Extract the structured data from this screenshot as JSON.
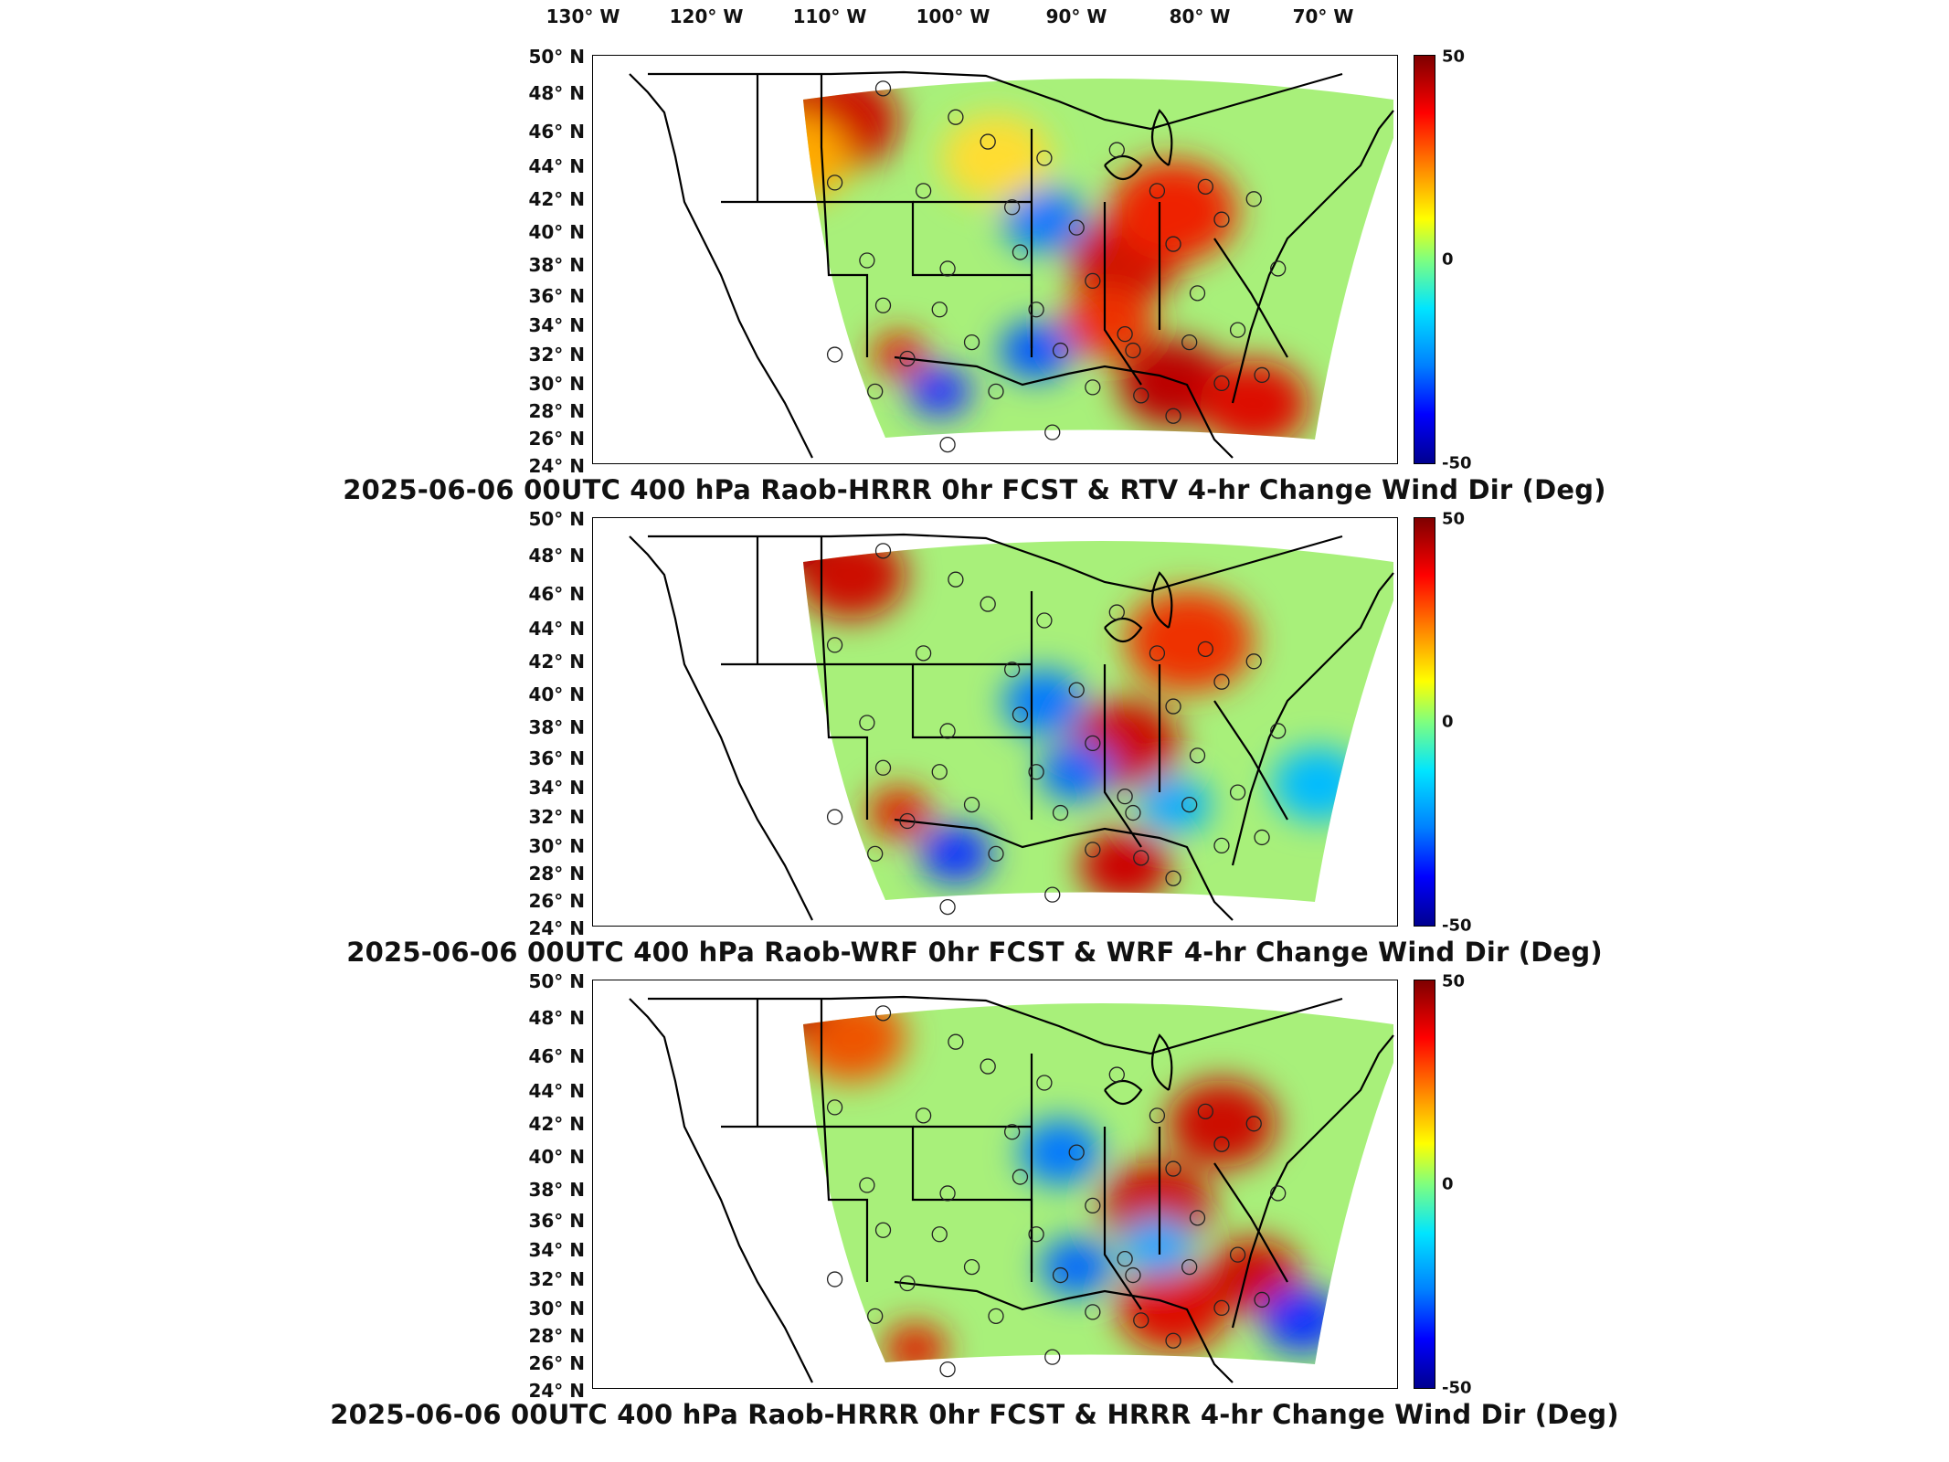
{
  "longitude_labels": [
    "130° W",
    "120° W",
    "110° W",
    "100° W",
    "90° W",
    "80° W",
    "70° W"
  ],
  "latitude_labels": [
    "50° N",
    "48° N",
    "46° N",
    "44° N",
    "42° N",
    "40° N",
    "38° N",
    "36° N",
    "34° N",
    "32° N",
    "30° N",
    "28° N",
    "26° N",
    "24° N"
  ],
  "colorbar": {
    "max": "50",
    "mid": "0",
    "min": "-50",
    "colors": [
      "#7f0000",
      "#ff0000",
      "#ff8c00",
      "#ffff00",
      "#7fff7f",
      "#00e5ff",
      "#0080ff",
      "#0000ff",
      "#00008f"
    ]
  },
  "panels": [
    {
      "title": "2025-06-06 00UTC 400 hPa Raob-HRRR 0hr FCST & RTV 4-hr Change Wind Dir (Deg)"
    },
    {
      "title": "2025-06-06 00UTC 400 hPa Raob-WRF 0hr FCST & WRF 4-hr Change Wind Dir (Deg)"
    },
    {
      "title": "2025-06-06 00UTC 400 hPa Raob-HRRR 0hr FCST & HRRR 4-hr Change Wind Dir (Deg)"
    }
  ]
}
